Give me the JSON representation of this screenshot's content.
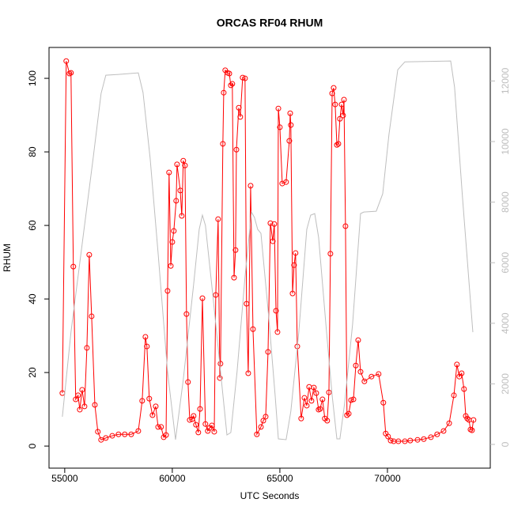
{
  "chart_data": {
    "type": "line",
    "title": "ORCAS RF04 RHUM",
    "xlabel": "UTC Seconds",
    "ylabel": "RHUM",
    "xlim": [
      54270,
      74780
    ],
    "xticks": [
      55000,
      60000,
      65000,
      70000
    ],
    "ylim": [
      -6,
      108.4
    ],
    "yticks": [
      0,
      20,
      40,
      60,
      80,
      100
    ],
    "y2lim": [
      -783,
      13107
    ],
    "y2ticks": [
      0,
      2000,
      4000,
      6000,
      8000,
      10000,
      12000
    ],
    "y2color": "#bebebe",
    "series": [
      {
        "color": "#ff0000",
        "markers": true,
        "x": [
          54890,
          55070,
          55220,
          55290,
          55400,
          55510,
          55620,
          55700,
          55810,
          55920,
          56030,
          56140,
          56250,
          56400,
          56540,
          56690,
          56910,
          57210,
          57500,
          57790,
          58090,
          58420,
          58600,
          58750,
          58820,
          58930,
          59080,
          59230,
          59340,
          59480,
          59600,
          59710,
          59780,
          59850,
          59930,
          60000,
          60070,
          60180,
          60220,
          60370,
          60440,
          60510,
          60590,
          60660,
          60730,
          60810,
          60920,
          60990,
          61100,
          61210,
          61290,
          61400,
          61540,
          61650,
          61730,
          61840,
          61950,
          62020,
          62130,
          62210,
          62240,
          62350,
          62390,
          62460,
          62570,
          62650,
          62720,
          62790,
          62870,
          62940,
          62980,
          63090,
          63160,
          63270,
          63380,
          63450,
          63530,
          63640,
          63750,
          63930,
          64120,
          64230,
          64340,
          64450,
          64560,
          64670,
          64740,
          64820,
          64890,
          64930,
          65000,
          65110,
          65290,
          65440,
          65480,
          65510,
          65590,
          65660,
          65730,
          65810,
          65990,
          66140,
          66250,
          66360,
          66470,
          66580,
          66690,
          66800,
          66870,
          66980,
          67090,
          67200,
          67280,
          67350,
          67430,
          67500,
          67570,
          67650,
          67720,
          67790,
          67870,
          67940,
          67980,
          68050,
          68120,
          68200,
          68310,
          68420,
          68530,
          68640,
          68750,
          68930,
          69260,
          69590,
          69810,
          69920,
          70030,
          70150,
          70290,
          70510,
          70810,
          71060,
          71400,
          71690,
          72020,
          72310,
          72610,
          72870,
          73090,
          73230,
          73340,
          73450,
          73560,
          73640,
          73710,
          73790,
          73860,
          73930,
          74000
        ],
        "values": [
          14.4,
          104.7,
          101.3,
          101.5,
          48.8,
          12.7,
          13.8,
          9.9,
          15.3,
          10.8,
          26.7,
          52.0,
          35.3,
          11.2,
          3.9,
          1.7,
          2.2,
          2.8,
          3.2,
          3.2,
          3.2,
          4.1,
          12.3,
          29.7,
          27.1,
          12.9,
          8.4,
          10.8,
          5.2,
          5.2,
          2.4,
          3.0,
          42.2,
          74.4,
          49.0,
          55.5,
          58.5,
          66.7,
          76.6,
          69.5,
          62.6,
          77.6,
          76.3,
          35.9,
          17.4,
          7.1,
          7.3,
          8.2,
          5.8,
          3.7,
          10.1,
          40.2,
          6.0,
          4.1,
          4.9,
          5.6,
          3.9,
          41.1,
          61.7,
          18.5,
          22.4,
          82.2,
          96.1,
          102.2,
          101.5,
          101.3,
          98.1,
          98.5,
          45.8,
          53.3,
          80.6,
          92.0,
          89.5,
          100.2,
          100.0,
          38.7,
          19.8,
          70.8,
          31.8,
          3.2,
          5.2,
          6.9,
          8.0,
          25.6,
          60.6,
          55.7,
          60.4,
          36.8,
          31.0,
          91.8,
          86.7,
          71.4,
          71.8,
          83.0,
          90.5,
          87.3,
          41.5,
          49.2,
          52.5,
          27.1,
          7.5,
          13.1,
          11.0,
          16.1,
          12.3,
          15.9,
          14.4,
          9.9,
          10.1,
          12.7,
          7.5,
          6.9,
          14.6,
          52.3,
          95.9,
          97.4,
          92.9,
          81.9,
          82.2,
          89.0,
          92.9,
          89.9,
          94.2,
          59.8,
          8.4,
          8.8,
          12.5,
          12.7,
          21.9,
          28.8,
          20.2,
          17.6,
          18.9,
          19.6,
          11.8,
          3.4,
          2.6,
          1.5,
          1.3,
          1.3,
          1.3,
          1.5,
          1.7,
          1.9,
          2.4,
          3.2,
          4.1,
          6.2,
          13.8,
          22.2,
          18.9,
          19.8,
          15.5,
          8.2,
          7.5,
          7.1,
          4.5,
          4.3,
          7.1
        ]
      },
      {
        "color": "#bebebe",
        "axis": "y2",
        "markers": false,
        "x": [
          54890,
          55290,
          55850,
          56320,
          56690,
          56910,
          57500,
          58420,
          58640,
          58970,
          59340,
          59780,
          60150,
          60510,
          60990,
          61250,
          61400,
          61540,
          61910,
          62280,
          62540,
          62720,
          63010,
          63380,
          63680,
          63820,
          63970,
          64120,
          64480,
          64780,
          64930,
          65290,
          65510,
          65880,
          66250,
          66430,
          66620,
          66800,
          67170,
          67430,
          67650,
          67790,
          68010,
          68380,
          68750,
          68900,
          69480,
          69780,
          70070,
          70480,
          70810,
          72940,
          73120,
          73490,
          73970
        ],
        "values": [
          914,
          3706,
          6838,
          9448,
          11588,
          12189,
          12215,
          12267,
          11615,
          9448,
          6316,
          2401,
          157,
          2140,
          5272,
          7099,
          7569,
          7230,
          4750,
          2140,
          313,
          392,
          2401,
          5533,
          7673,
          7491,
          7099,
          6969,
          4228,
          1618,
          183,
          157,
          1096,
          3706,
          7099,
          7569,
          7621,
          6838,
          3706,
          1618,
          183,
          183,
          1357,
          3967,
          7621,
          7673,
          7700,
          8274,
          10231,
          12371,
          12632,
          12659,
          11797,
          8143,
          3706
        ]
      }
    ]
  }
}
